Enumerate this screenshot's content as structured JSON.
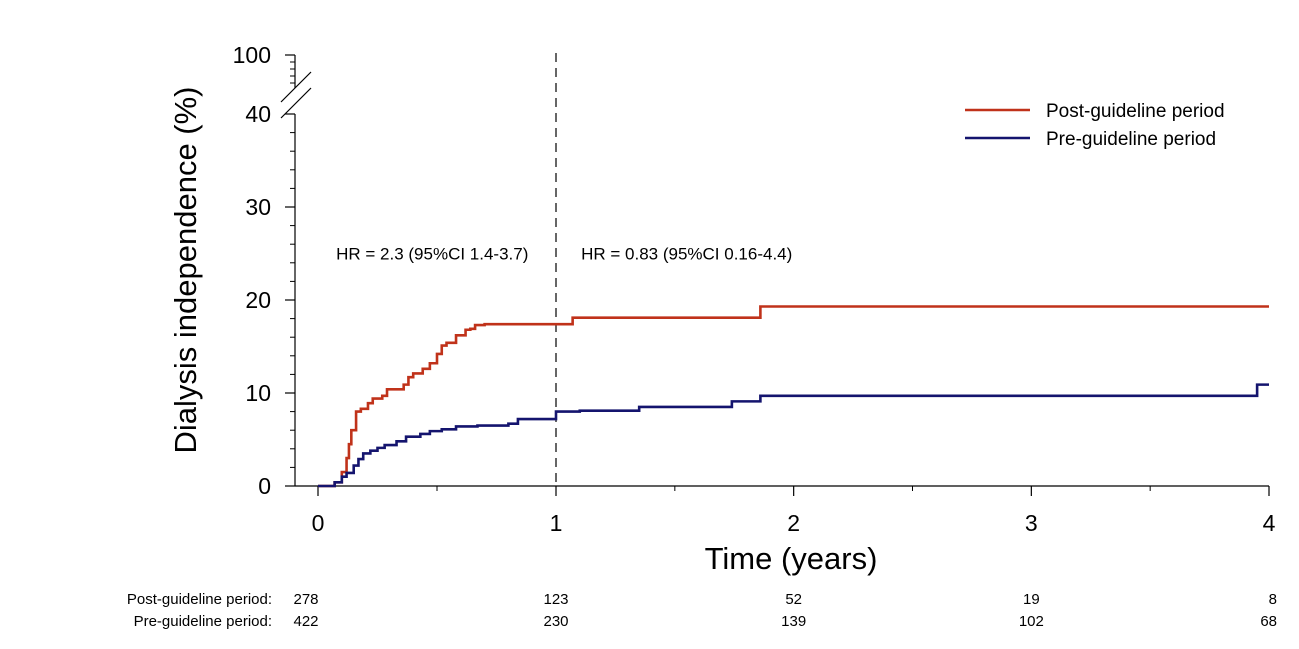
{
  "chart_data": {
    "type": "line",
    "xlabel": "Time (years)",
    "ylabel": "Dialysis independence (%)",
    "x_tick_labels": [
      "0",
      "1",
      "2",
      "3",
      "4"
    ],
    "y_tick_labels": [
      "0",
      "10",
      "20",
      "30",
      "40",
      "100"
    ],
    "xlim": [
      -0.1,
      4
    ],
    "ylim": [
      0,
      40
    ],
    "y_axis_break": {
      "from": 40,
      "to": 100
    },
    "grid": false,
    "legend_position": "top-right",
    "vertical_reference_line": {
      "x": 1,
      "style": "dashed"
    },
    "annotations": [
      {
        "text": "HR = 2.3 (95%CI 1.4-3.7)",
        "x": 0.48,
        "y": 25
      },
      {
        "text": "HR = 0.83 (95%CI 0.16-4.4)",
        "x": 1.55,
        "y": 25
      }
    ],
    "series": [
      {
        "name": "Post-guideline period",
        "color": "#c0321a",
        "step": true,
        "x": [
          0,
          0.07,
          0.1,
          0.12,
          0.13,
          0.14,
          0.16,
          0.18,
          0.21,
          0.23,
          0.27,
          0.29,
          0.36,
          0.38,
          0.4,
          0.44,
          0.47,
          0.5,
          0.52,
          0.54,
          0.58,
          0.62,
          0.64,
          0.66,
          0.7,
          0.9,
          1.0,
          1.07,
          1.5,
          1.86,
          4.0
        ],
        "y": [
          0,
          0.4,
          1.5,
          3,
          4.5,
          6,
          8,
          8.3,
          8.9,
          9.4,
          9.7,
          10.4,
          10.9,
          11.7,
          12.1,
          12.6,
          13.2,
          14.2,
          15.1,
          15.4,
          16.2,
          16.8,
          16.9,
          17.3,
          17.4,
          17.4,
          17.4,
          18.1,
          18.1,
          19.3,
          19.3
        ]
      },
      {
        "name": "Pre-guideline period",
        "color": "#14146e",
        "step": true,
        "x": [
          0,
          0.07,
          0.1,
          0.12,
          0.15,
          0.17,
          0.19,
          0.22,
          0.25,
          0.28,
          0.33,
          0.37,
          0.43,
          0.47,
          0.52,
          0.58,
          0.67,
          0.8,
          0.84,
          1.0,
          1.1,
          1.35,
          1.5,
          1.74,
          1.86,
          2.5,
          3.95,
          4.0
        ],
        "y": [
          0,
          0.4,
          1.0,
          1.4,
          2.2,
          2.9,
          3.5,
          3.8,
          4.1,
          4.4,
          4.8,
          5.3,
          5.6,
          5.9,
          6.1,
          6.4,
          6.5,
          6.7,
          7.2,
          8.0,
          8.1,
          8.5,
          8.5,
          9.1,
          9.7,
          9.7,
          10.9,
          10.9
        ]
      }
    ],
    "risk_table": {
      "rows": [
        {
          "label": "Post-guideline period:",
          "values": [
            "278",
            "123",
            "52",
            "19",
            "8"
          ]
        },
        {
          "label": "Pre-guideline period:",
          "values": [
            "422",
            "230",
            "139",
            "102",
            "68"
          ]
        }
      ]
    }
  }
}
